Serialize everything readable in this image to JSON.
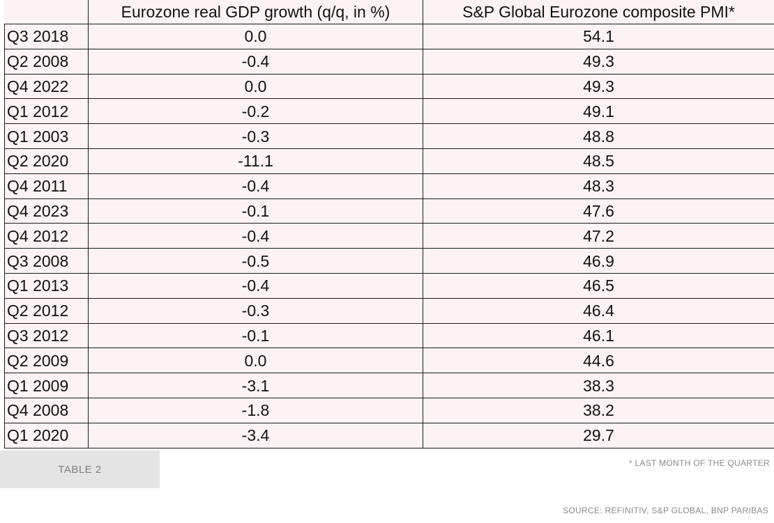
{
  "table": {
    "headers": {
      "corner": "",
      "col1": "Eurozone real GDP growth (q/q, in %)",
      "col2": "S&P Global Eurozone composite PMI*"
    },
    "rows": [
      {
        "quarter": "Q3 2018",
        "gdp": "0.0",
        "pmi": "54.1"
      },
      {
        "quarter": "Q2 2008",
        "gdp": "-0.4",
        "pmi": "49.3"
      },
      {
        "quarter": "Q4 2022",
        "gdp": "0.0",
        "pmi": "49.3"
      },
      {
        "quarter": "Q1 2012",
        "gdp": "-0.2",
        "pmi": "49.1"
      },
      {
        "quarter": "Q1 2003",
        "gdp": "-0.3",
        "pmi": "48.8"
      },
      {
        "quarter": "Q2 2020",
        "gdp": "-11.1",
        "pmi": "48.5"
      },
      {
        "quarter": "Q4 2011",
        "gdp": "-0.4",
        "pmi": "48.3"
      },
      {
        "quarter": "Q4 2023",
        "gdp": "-0.1",
        "pmi": "47.6"
      },
      {
        "quarter": "Q4 2012",
        "gdp": "-0.4",
        "pmi": "47.2"
      },
      {
        "quarter": "Q3 2008",
        "gdp": "-0.5",
        "pmi": "46.9"
      },
      {
        "quarter": "Q1 2013",
        "gdp": "-0.4",
        "pmi": "46.5"
      },
      {
        "quarter": "Q2 2012",
        "gdp": "-0.3",
        "pmi": "46.4"
      },
      {
        "quarter": "Q3 2012",
        "gdp": "-0.1",
        "pmi": "46.1"
      },
      {
        "quarter": "Q2 2009",
        "gdp": "0.0",
        "pmi": "44.6"
      },
      {
        "quarter": "Q1 2009",
        "gdp": "-3.1",
        "pmi": "38.3"
      },
      {
        "quarter": "Q4 2008",
        "gdp": "-1.8",
        "pmi": "38.2"
      },
      {
        "quarter": "Q1 2020",
        "gdp": "-3.4",
        "pmi": "29.7"
      }
    ]
  },
  "footer": {
    "tab_label": "TABLE 2",
    "footnote": "* LAST MONTH OF THE QUARTER",
    "source": "SOURCE: REFINITIV, S&P GLOBAL, BNP PARIBAS"
  },
  "colors": {
    "table_background": "#fdf3f3",
    "tab_background": "#e4e4e4",
    "muted_text": "#8a8a8a"
  }
}
